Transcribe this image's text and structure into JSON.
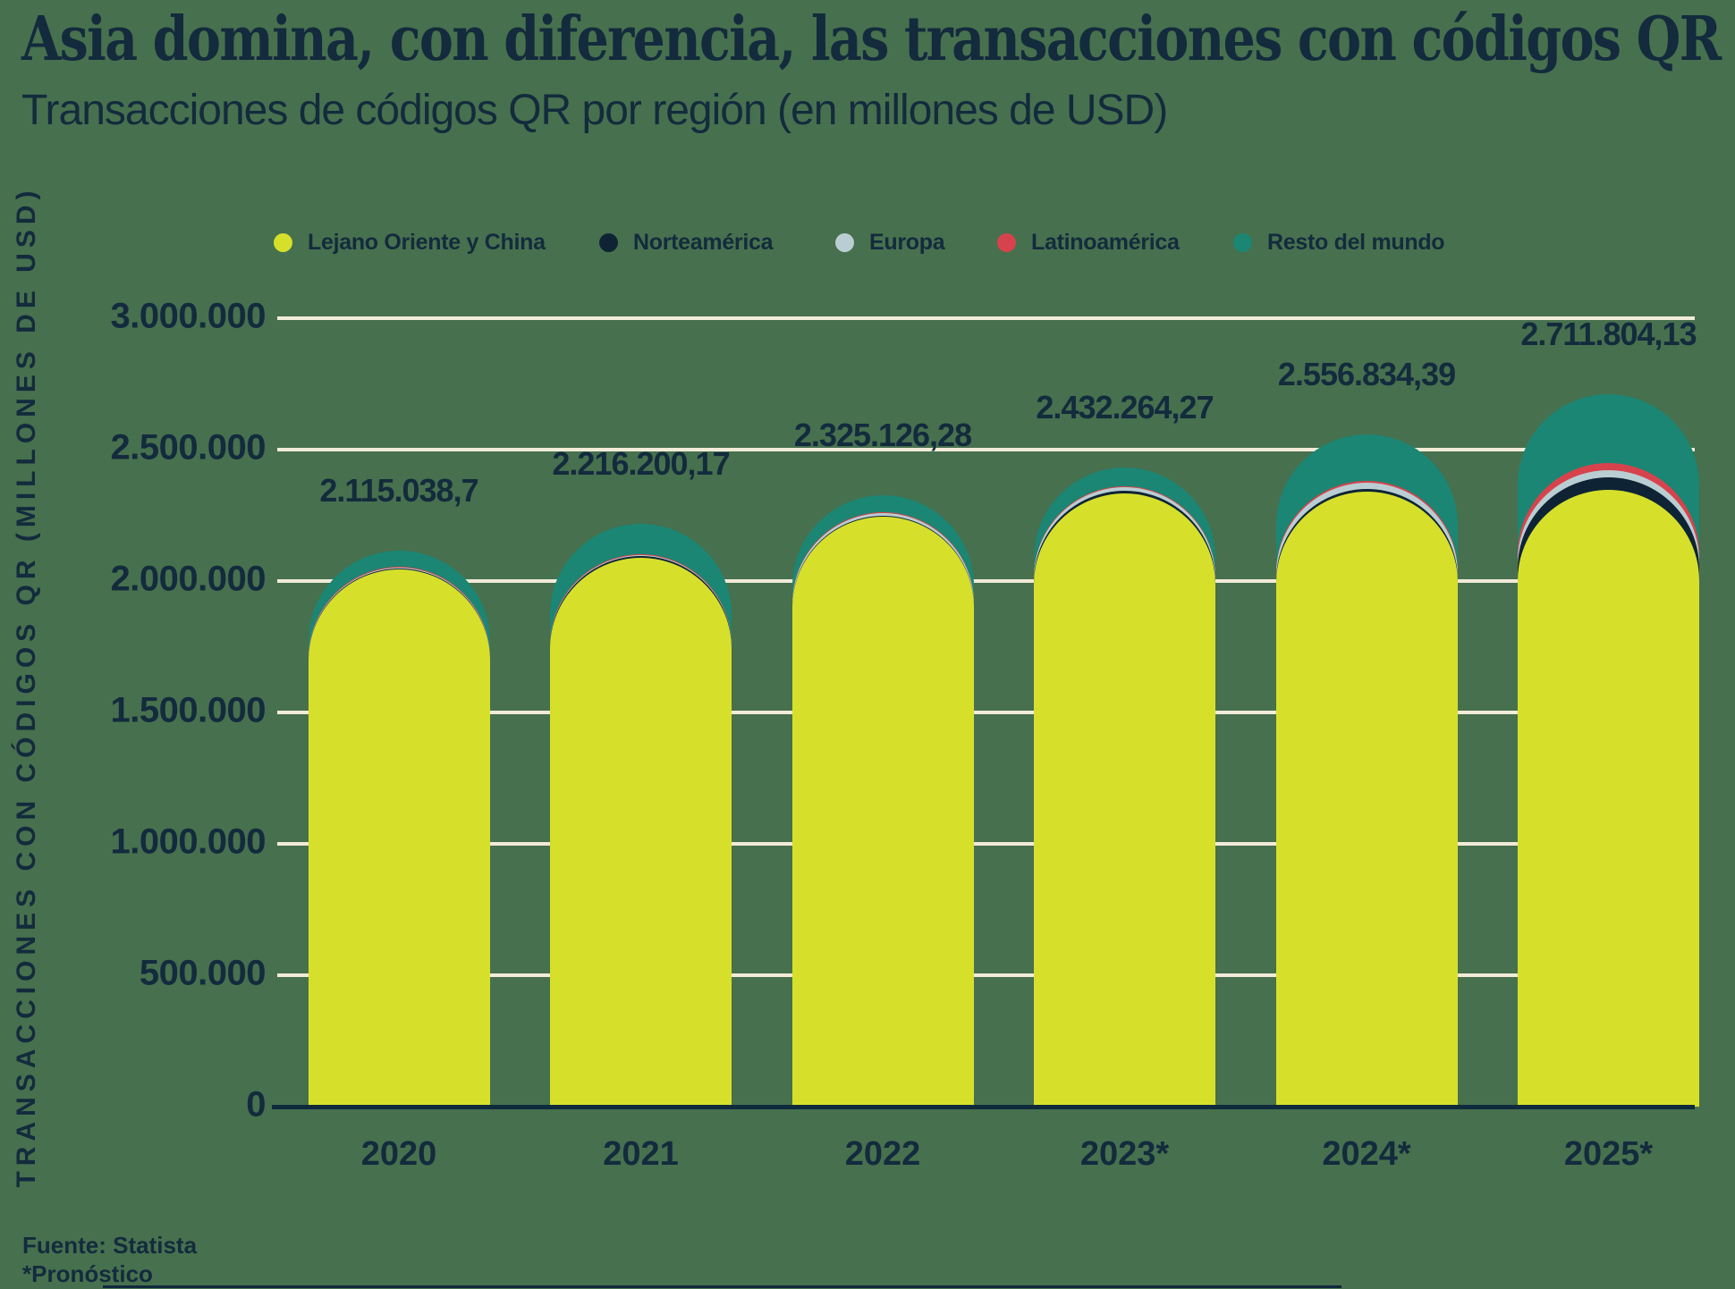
{
  "title": "Asia domina, con diferencia, las transacciones con códigos QR",
  "subtitle": "Transacciones de códigos QR por región (en millones de USD)",
  "y_axis": {
    "title": "TRANSACCIONES CON CÓDIGOS QR (MILLONES DE USD)",
    "ticks": [
      {
        "label": "3.000.000",
        "value": 3000000
      },
      {
        "label": "2.500.000",
        "value": 2500000
      },
      {
        "label": "2.000.000",
        "value": 2000000
      },
      {
        "label": "1.500.000",
        "value": 1500000
      },
      {
        "label": "1.000.000",
        "value": 1000000
      },
      {
        "label": "500.000",
        "value": 500000
      },
      {
        "label": "0",
        "value": 0
      }
    ]
  },
  "footer": {
    "source": "Fuente: Statista",
    "note": "*Pronóstico"
  },
  "colors": {
    "background": "#47704E",
    "text": "#132B3D",
    "gridline": "#F1EBD8",
    "axis_line": "#0F2A3C"
  },
  "chart_data": {
    "type": "bar",
    "stacked": true,
    "rounded_tops": true,
    "title": "Asia domina, con diferencia, las transacciones con códigos QR",
    "subtitle": "Transacciones de códigos QR por región (en millones de USD)",
    "xlabel": "",
    "ylabel": "TRANSACCIONES CON CÓDIGOS QR (MILLONES DE USD)",
    "ylim": [
      0,
      3000000
    ],
    "grid": true,
    "legend_position": "top",
    "categories": [
      "2020",
      "2021",
      "2022",
      "2023*",
      "2024*",
      "2025*"
    ],
    "series": [
      {
        "name": "Lejano Oriente y China",
        "color": "#D6E02B",
        "values": [
          2045000,
          2090000,
          2245000,
          2335000,
          2340000,
          2347000
        ]
      },
      {
        "name": "Norteamérica",
        "color": "#0E2435",
        "values": [
          3000,
          4000,
          5000,
          10000,
          10000,
          48000
        ]
      },
      {
        "name": "Europa",
        "color": "#B9CED3",
        "values": [
          4000,
          6000,
          8000,
          12000,
          24000,
          27000
        ]
      },
      {
        "name": "Latinoamérica",
        "color": "#D7434C",
        "values": [
          1500,
          2200,
          3000,
          5000,
          6000,
          27000
        ]
      },
      {
        "name": "Resto del mundo",
        "color": "#1B8673",
        "values": [
          61538.7,
          114000.17,
          64126.28,
          70264.27,
          176834.39,
          262804.13
        ]
      }
    ],
    "totals": [
      2115038.7,
      2216200.17,
      2325126.28,
      2432264.27,
      2556834.39,
      2711804.13
    ],
    "total_labels": [
      "2.115.038,7",
      "2.216.200,17",
      "2.325.126,28",
      "2.432.264,27",
      "2.556.834,39",
      "2.711.804,13"
    ]
  }
}
